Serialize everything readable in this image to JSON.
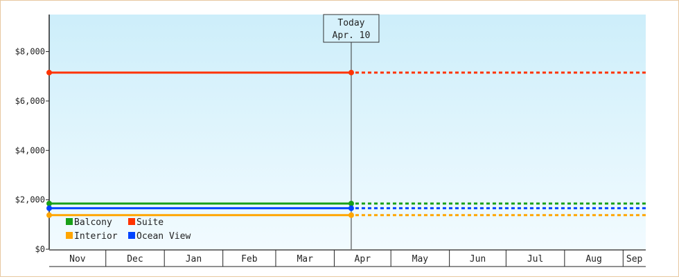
{
  "chart_data": {
    "type": "line",
    "title": "",
    "xlabel": "",
    "ylabel": "",
    "x_categories": [
      "Nov",
      "Dec",
      "Jan",
      "Feb",
      "Mar",
      "Apr",
      "May",
      "Jun",
      "Jul",
      "Aug",
      "Sep"
    ],
    "x_range": [
      "Nov 1",
      "Sep 13"
    ],
    "month_start_days": [
      0,
      30,
      61,
      92,
      120,
      151,
      181,
      212,
      242,
      273,
      304
    ],
    "month_lengths": [
      30,
      31,
      31,
      28,
      31,
      30,
      31,
      30,
      31,
      31,
      30
    ],
    "axis_end_day": 316,
    "ylim": [
      0,
      9500
    ],
    "y_ticks": [
      0,
      2000,
      4000,
      6000,
      8000
    ],
    "y_tick_labels": [
      "$0",
      "$2,000",
      "$4,000",
      "$6,000",
      "$8,000"
    ],
    "today": {
      "title": "Today",
      "date": "Apr. 10",
      "day": 160
    },
    "series": [
      {
        "name": "Balcony",
        "color": "#18a018",
        "value": 1850
      },
      {
        "name": "Suite",
        "color": "#ff3300",
        "value": 7150
      },
      {
        "name": "Interior",
        "color": "#ffa500",
        "value": 1380
      },
      {
        "name": "Ocean View",
        "color": "#0044ff",
        "value": 1660
      }
    ],
    "legend_position": "bottom-left",
    "grid": false
  }
}
